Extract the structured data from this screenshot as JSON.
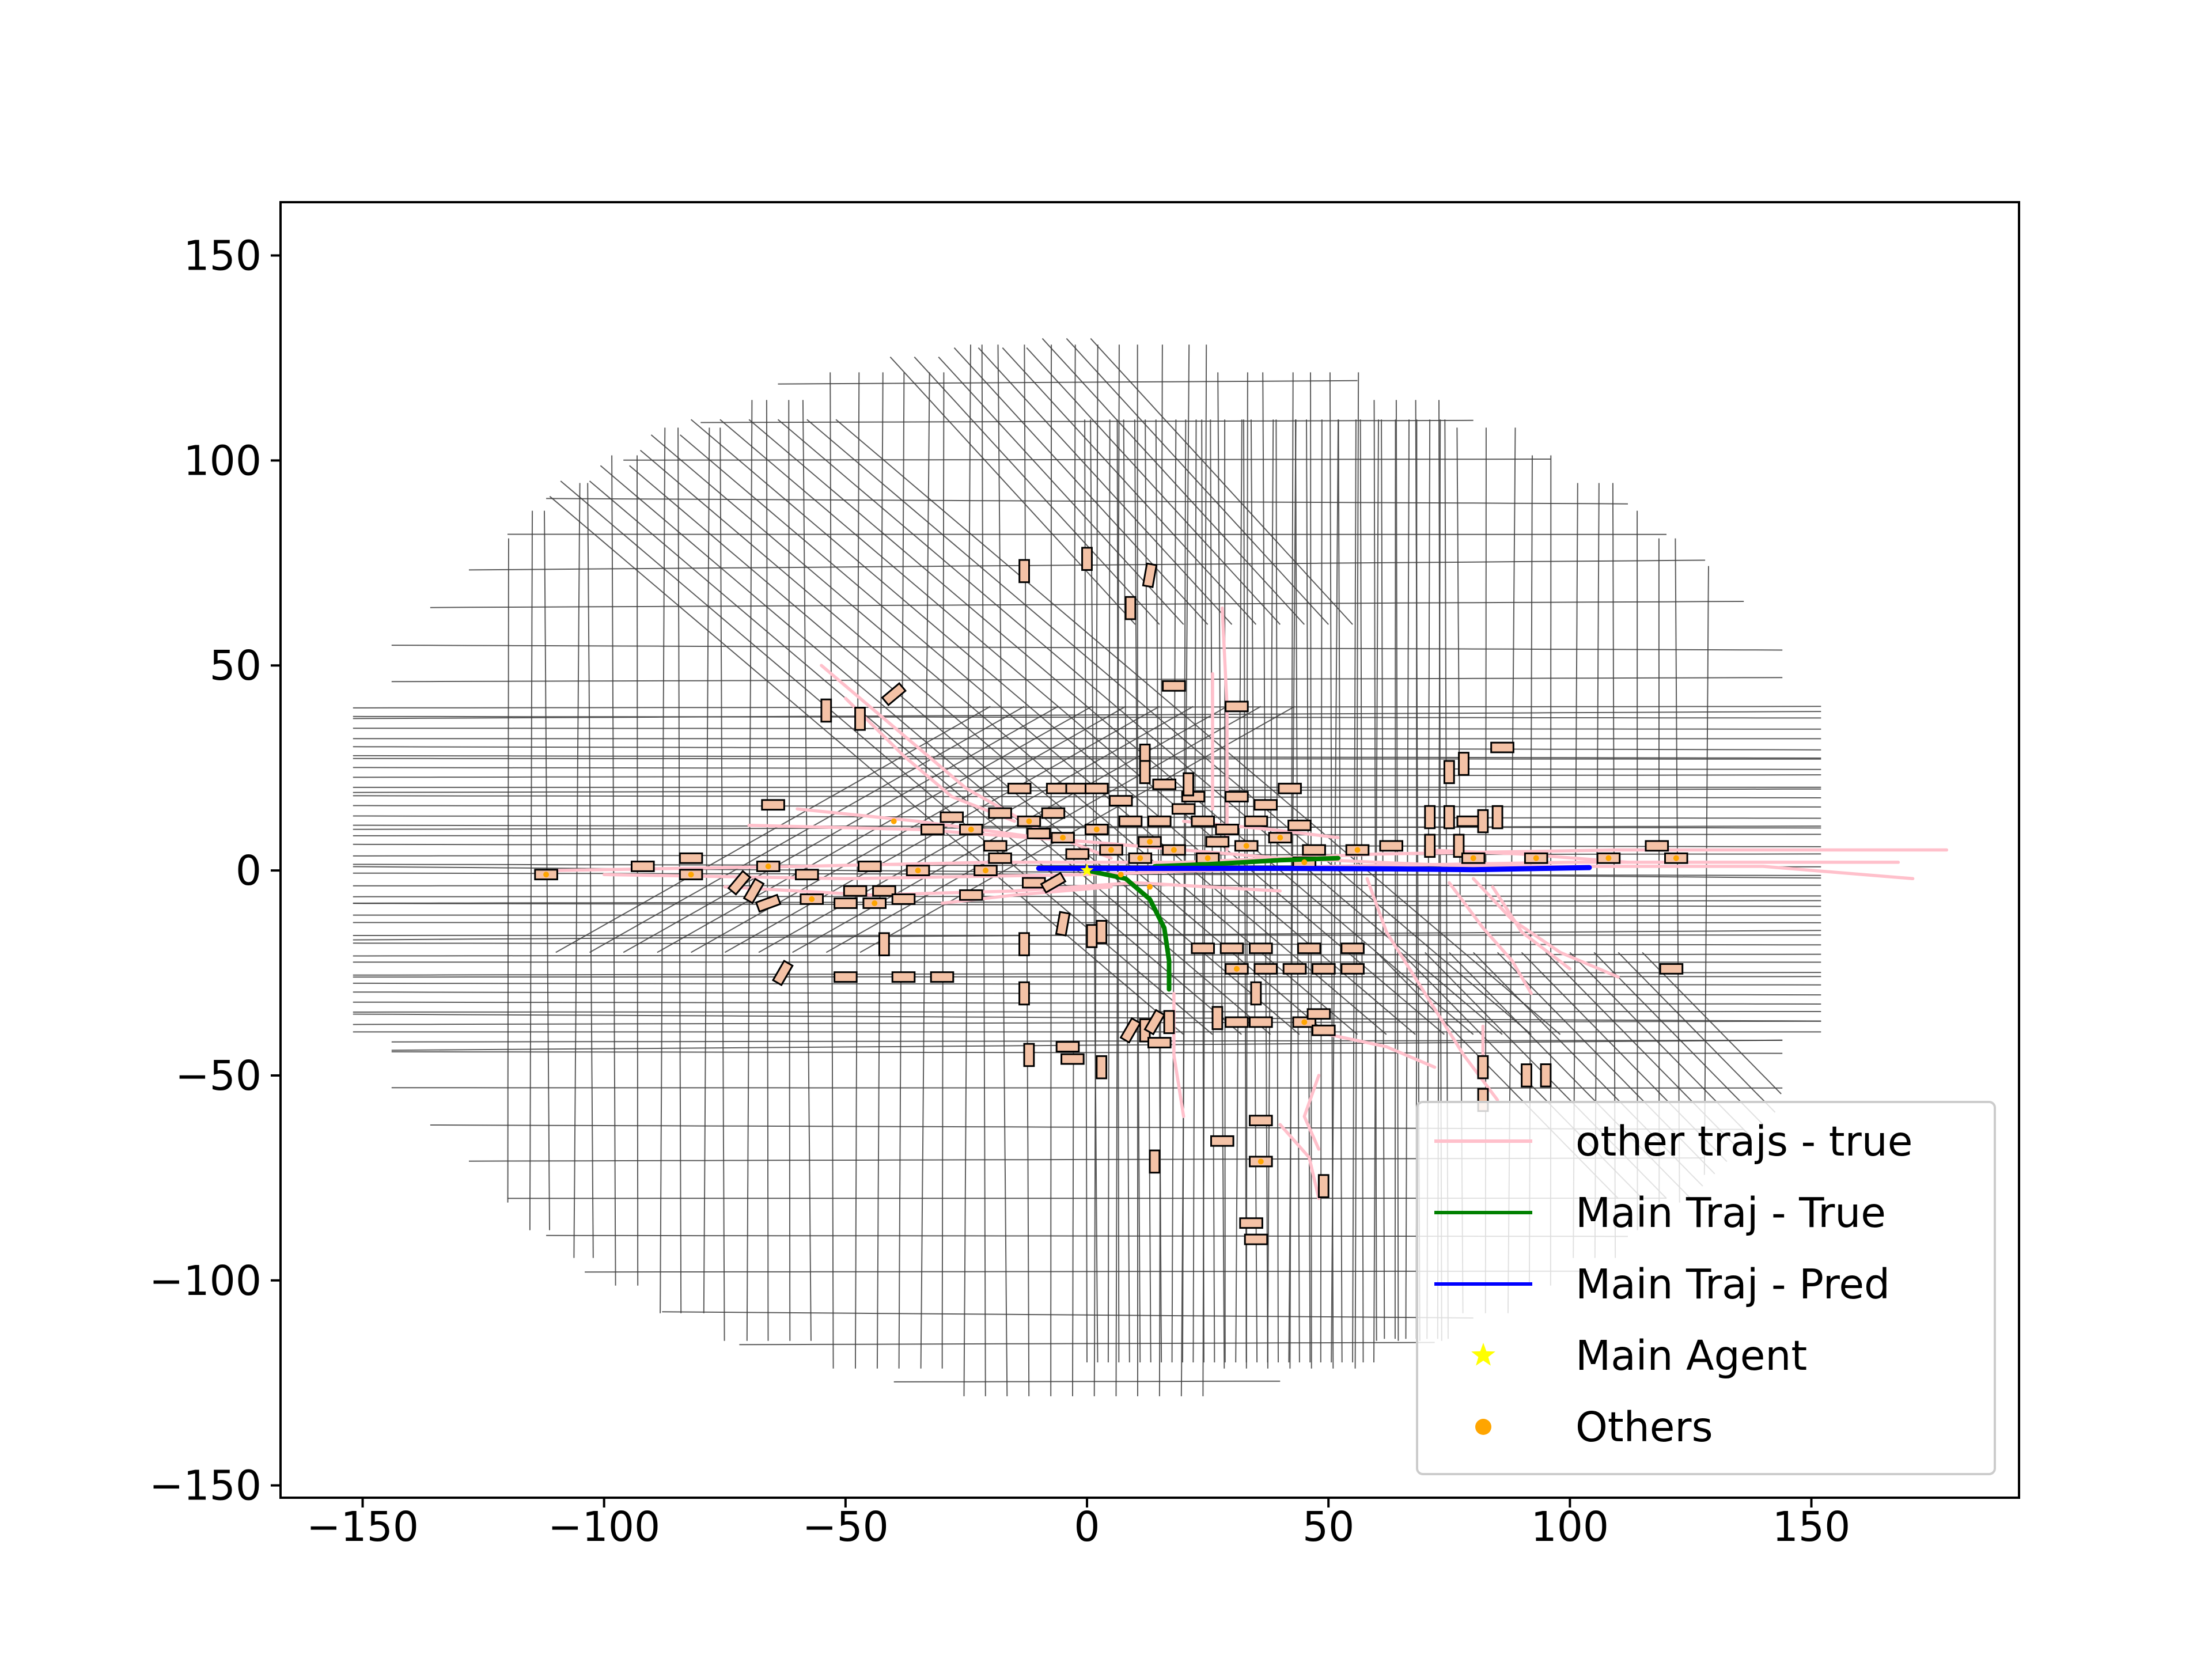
{
  "chart_data": {
    "type": "scatter",
    "title": "",
    "xlabel": "",
    "ylabel": "",
    "xlim": [
      -167,
      193
    ],
    "ylim": [
      -153,
      163
    ],
    "xticks": [
      -150,
      -100,
      -50,
      0,
      50,
      100,
      150
    ],
    "yticks": [
      -150,
      -100,
      -50,
      0,
      50,
      100,
      150
    ],
    "xtick_labels": [
      "−150",
      "−100",
      "−50",
      "0",
      "50",
      "100",
      "150"
    ],
    "ytick_labels": [
      "−150",
      "−100",
      "−50",
      "0",
      "50",
      "100",
      "150"
    ],
    "grid": false,
    "legend_position": "lower-right",
    "legend": [
      {
        "label": "other trajs - true",
        "kind": "line",
        "color": "#ffc0cb"
      },
      {
        "label": "Main Traj - True",
        "kind": "line",
        "color": "#008000"
      },
      {
        "label": "Main Traj - Pred",
        "kind": "line",
        "color": "#0000ff"
      },
      {
        "label": "Main Agent",
        "kind": "star",
        "color": "#ffff00"
      },
      {
        "label": "Others",
        "kind": "dot",
        "color": "#ffa500"
      }
    ],
    "map_color": "#404040",
    "main_agent": {
      "x": 0,
      "y": 0
    },
    "main_traj_true": [
      [
        0,
        0
      ],
      [
        8,
        -2
      ],
      [
        13,
        -7
      ],
      [
        16,
        -14
      ],
      [
        17,
        -22
      ],
      [
        17,
        -29
      ]
    ],
    "main_traj_true_branch": [
      [
        14,
        1
      ],
      [
        25,
        1.5
      ],
      [
        40,
        2.5
      ],
      [
        52,
        3
      ]
    ],
    "main_traj_pred": [
      [
        -10,
        0.5
      ],
      [
        0,
        0.5
      ],
      [
        20,
        0.5
      ],
      [
        40,
        0.5
      ],
      [
        60,
        0.4
      ],
      [
        80,
        0.2
      ],
      [
        95,
        0.5
      ],
      [
        104,
        0.7
      ]
    ],
    "other_trajs": [
      [
        [
          -110,
          0
        ],
        [
          -60,
          1
        ],
        [
          -20,
          2
        ],
        [
          20,
          2
        ],
        [
          60,
          4
        ],
        [
          110,
          5
        ],
        [
          178,
          5
        ]
      ],
      [
        [
          -100,
          -1
        ],
        [
          -50,
          -2
        ],
        [
          0,
          -1
        ],
        [
          50,
          1
        ],
        [
          100,
          2
        ],
        [
          168,
          2
        ]
      ],
      [
        [
          -70,
          11
        ],
        [
          -35,
          10
        ],
        [
          0,
          7
        ],
        [
          40,
          3
        ],
        [
          80,
          1
        ],
        [
          140,
          1
        ],
        [
          171,
          -2
        ]
      ],
      [
        [
          -75,
          -4
        ],
        [
          -45,
          -6
        ],
        [
          -15,
          -5
        ],
        [
          10,
          -3
        ],
        [
          40,
          -5
        ]
      ],
      [
        [
          -55,
          50
        ],
        [
          -40,
          35
        ],
        [
          -25,
          20
        ],
        [
          -10,
          10
        ],
        [
          5,
          3
        ]
      ],
      [
        [
          -50,
          42
        ],
        [
          -38,
          28
        ],
        [
          -28,
          18
        ],
        [
          -15,
          12
        ]
      ],
      [
        [
          28,
          64
        ],
        [
          29,
          40
        ],
        [
          29,
          18
        ],
        [
          29,
          5
        ]
      ],
      [
        [
          26,
          48
        ],
        [
          26,
          30
        ],
        [
          26,
          15
        ]
      ],
      [
        [
          58,
          -2
        ],
        [
          62,
          -15
        ],
        [
          70,
          -30
        ],
        [
          78,
          -45
        ],
        [
          85,
          -56
        ]
      ],
      [
        [
          80,
          -2
        ],
        [
          88,
          -12
        ],
        [
          98,
          -20
        ],
        [
          110,
          -26
        ]
      ],
      [
        [
          84,
          -4
        ],
        [
          90,
          -15
        ],
        [
          100,
          -24
        ]
      ],
      [
        [
          75,
          -3
        ],
        [
          82,
          -14
        ],
        [
          88,
          -22
        ],
        [
          92,
          -30
        ]
      ],
      [
        [
          50,
          -40
        ],
        [
          62,
          -43
        ],
        [
          72,
          -48
        ]
      ],
      [
        [
          18,
          -30
        ],
        [
          18,
          -45
        ],
        [
          20,
          -60
        ]
      ],
      [
        [
          40,
          -62
        ],
        [
          46,
          -70
        ],
        [
          48,
          -80
        ]
      ],
      [
        [
          48,
          -50
        ],
        [
          45,
          -60
        ],
        [
          48,
          -68
        ]
      ],
      [
        [
          -60,
          15
        ],
        [
          -35,
          12
        ],
        [
          -10,
          8
        ],
        [
          10,
          6
        ]
      ],
      [
        [
          20,
          12
        ],
        [
          38,
          10
        ],
        [
          52,
          8
        ]
      ],
      [
        [
          -30,
          -8
        ],
        [
          -15,
          -6
        ],
        [
          5,
          -4
        ]
      ],
      [
        [
          82,
          -38
        ],
        [
          82,
          -50
        ]
      ],
      [
        [
          70,
          5
        ],
        [
          90,
          4
        ],
        [
          112,
          2
        ]
      ]
    ],
    "vehicles": [
      [
        -112,
        -1,
        0
      ],
      [
        -92,
        1,
        0
      ],
      [
        -82,
        3,
        0
      ],
      [
        -82,
        -1,
        0
      ],
      [
        -69,
        -5,
        60
      ],
      [
        -72,
        -3,
        50
      ],
      [
        -66,
        -8,
        20
      ],
      [
        -66,
        1,
        0
      ],
      [
        -65,
        16,
        0
      ],
      [
        -58,
        -1,
        0
      ],
      [
        -57,
        -7,
        0
      ],
      [
        -50,
        -8,
        0
      ],
      [
        -48,
        -5,
        0
      ],
      [
        -44,
        -8,
        0
      ],
      [
        -42,
        -5,
        0
      ],
      [
        -45,
        1,
        0
      ],
      [
        -38,
        -7,
        0
      ],
      [
        -35,
        0,
        0
      ],
      [
        -32,
        10,
        0
      ],
      [
        -28,
        13,
        0
      ],
      [
        -24,
        10,
        0
      ],
      [
        -24,
        -6,
        0
      ],
      [
        -21,
        0,
        0
      ],
      [
        -18,
        3,
        0
      ],
      [
        -18,
        14,
        0
      ],
      [
        -19,
        6,
        0
      ],
      [
        -14,
        20,
        0
      ],
      [
        -12,
        12,
        0
      ],
      [
        -10,
        9,
        0
      ],
      [
        -11,
        -3,
        0
      ],
      [
        -7,
        14,
        0
      ],
      [
        -6,
        20,
        0
      ],
      [
        -5,
        8,
        0
      ],
      [
        -2,
        4,
        0
      ],
      [
        -2,
        20,
        0
      ],
      [
        2,
        20,
        0
      ],
      [
        2,
        10,
        0
      ],
      [
        5,
        5,
        0
      ],
      [
        7,
        17,
        0
      ],
      [
        9,
        12,
        0
      ],
      [
        11,
        3,
        0
      ],
      [
        13,
        7,
        0
      ],
      [
        15,
        12,
        0
      ],
      [
        16,
        21,
        0
      ],
      [
        18,
        5,
        0
      ],
      [
        20,
        15,
        0
      ],
      [
        22,
        18,
        0
      ],
      [
        24,
        12,
        0
      ],
      [
        25,
        3,
        0
      ],
      [
        27,
        7,
        0
      ],
      [
        29,
        10,
        0
      ],
      [
        31,
        18,
        0
      ],
      [
        33,
        6,
        0
      ],
      [
        35,
        12,
        0
      ],
      [
        37,
        16,
        0
      ],
      [
        40,
        8,
        0
      ],
      [
        42,
        20,
        0
      ],
      [
        44,
        11,
        0
      ],
      [
        45,
        2,
        0
      ],
      [
        47,
        5,
        0
      ],
      [
        56,
        5,
        0
      ],
      [
        63,
        6,
        0
      ],
      [
        71,
        6,
        90
      ],
      [
        71,
        13,
        90
      ],
      [
        75,
        13,
        90
      ],
      [
        77,
        6,
        90
      ],
      [
        79,
        12,
        0
      ],
      [
        80,
        3,
        0
      ],
      [
        82,
        12,
        90
      ],
      [
        85,
        13,
        90
      ],
      [
        75,
        24,
        90
      ],
      [
        78,
        26,
        90
      ],
      [
        86,
        30,
        0
      ],
      [
        93,
        3,
        0
      ],
      [
        108,
        3,
        0
      ],
      [
        118,
        6,
        0
      ],
      [
        122,
        3,
        0
      ],
      [
        121,
        -24,
        0
      ],
      [
        -40,
        43,
        40
      ],
      [
        -54,
        39,
        90
      ],
      [
        -47,
        37,
        90
      ],
      [
        -13,
        73,
        90
      ],
      [
        0,
        76,
        90
      ],
      [
        9,
        64,
        90
      ],
      [
        13,
        72,
        80
      ],
      [
        18,
        45,
        0
      ],
      [
        31,
        40,
        0
      ],
      [
        12,
        28,
        90
      ],
      [
        12,
        24,
        90
      ],
      [
        21,
        21,
        90
      ],
      [
        -42,
        -18,
        90
      ],
      [
        -50,
        -26,
        0
      ],
      [
        -38,
        -26,
        0
      ],
      [
        -30,
        -26,
        0
      ],
      [
        -63,
        -25,
        60
      ],
      [
        -13,
        -18,
        90
      ],
      [
        -5,
        -13,
        80
      ],
      [
        -7,
        -3,
        30
      ],
      [
        1,
        -16,
        90
      ],
      [
        3,
        -15,
        90
      ],
      [
        -13,
        -30,
        90
      ],
      [
        -12,
        -45,
        90
      ],
      [
        -4,
        -43,
        0
      ],
      [
        -3,
        -46,
        0
      ],
      [
        3,
        -48,
        90
      ],
      [
        9,
        -39,
        60
      ],
      [
        12,
        -39,
        90
      ],
      [
        14,
        -37,
        60
      ],
      [
        17,
        -37,
        90
      ],
      [
        15,
        -42,
        0
      ],
      [
        24,
        -19,
        0
      ],
      [
        30,
        -19,
        0
      ],
      [
        36,
        -19,
        0
      ],
      [
        31,
        -24,
        0
      ],
      [
        37,
        -24,
        0
      ],
      [
        43,
        -24,
        0
      ],
      [
        49,
        -24,
        0
      ],
      [
        46,
        -19,
        0
      ],
      [
        55,
        -19,
        0
      ],
      [
        55,
        -24,
        0
      ],
      [
        27,
        -36,
        90
      ],
      [
        31,
        -37,
        0
      ],
      [
        35,
        -30,
        90
      ],
      [
        36,
        -37,
        0
      ],
      [
        45,
        -37,
        0
      ],
      [
        48,
        -35,
        0
      ],
      [
        49,
        -39,
        0
      ],
      [
        28,
        -66,
        0
      ],
      [
        36,
        -61,
        0
      ],
      [
        36,
        -71,
        0
      ],
      [
        14,
        -71,
        90
      ],
      [
        34,
        -86,
        0
      ],
      [
        35,
        -90,
        0
      ],
      [
        49,
        -77,
        90
      ],
      [
        82,
        -48,
        90
      ],
      [
        82,
        -56,
        90
      ],
      [
        91,
        -50,
        90
      ],
      [
        95,
        -50,
        90
      ]
    ],
    "other_agents": [
      [
        -112,
        -1
      ],
      [
        -82,
        -1
      ],
      [
        -66,
        1
      ],
      [
        -57,
        -7
      ],
      [
        -44,
        -8
      ],
      [
        -35,
        0
      ],
      [
        -24,
        10
      ],
      [
        -21,
        0
      ],
      [
        -12,
        12
      ],
      [
        -5,
        8
      ],
      [
        2,
        10
      ],
      [
        5,
        5
      ],
      [
        11,
        3
      ],
      [
        13,
        7
      ],
      [
        18,
        5
      ],
      [
        25,
        3
      ],
      [
        33,
        6
      ],
      [
        40,
        8
      ],
      [
        45,
        2
      ],
      [
        56,
        5
      ],
      [
        80,
        3
      ],
      [
        93,
        3
      ],
      [
        108,
        3
      ],
      [
        122,
        3
      ],
      [
        -40,
        12
      ],
      [
        7,
        -1
      ],
      [
        13,
        -4
      ],
      [
        31,
        -24
      ],
      [
        45,
        -37
      ],
      [
        36,
        -71
      ]
    ]
  }
}
